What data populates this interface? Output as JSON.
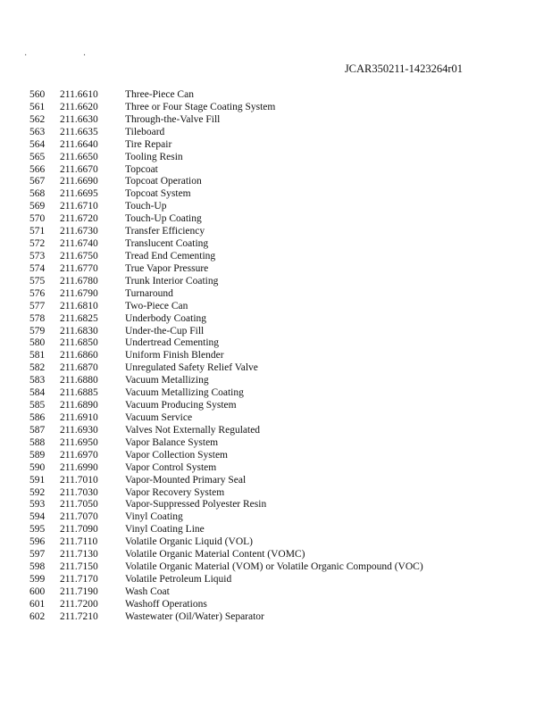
{
  "header": {
    "doc_id": "JCAR350211-1423264r01"
  },
  "rows": [
    {
      "num": "560",
      "section": "211.6610",
      "term": "Three-Piece Can"
    },
    {
      "num": "561",
      "section": "211.6620",
      "term": "Three or Four Stage Coating System"
    },
    {
      "num": "562",
      "section": "211.6630",
      "term": "Through-the-Valve Fill"
    },
    {
      "num": "563",
      "section": "211.6635",
      "term": "Tileboard"
    },
    {
      "num": "564",
      "section": "211.6640",
      "term": "Tire Repair"
    },
    {
      "num": "565",
      "section": "211.6650",
      "term": "Tooling Resin"
    },
    {
      "num": "566",
      "section": "211.6670",
      "term": "Topcoat"
    },
    {
      "num": "567",
      "section": "211.6690",
      "term": "Topcoat Operation"
    },
    {
      "num": "568",
      "section": "211.6695",
      "term": "Topcoat System"
    },
    {
      "num": "569",
      "section": "211.6710",
      "term": "Touch-Up"
    },
    {
      "num": "570",
      "section": "211.6720",
      "term": "Touch-Up Coating"
    },
    {
      "num": "571",
      "section": "211.6730",
      "term": "Transfer Efficiency"
    },
    {
      "num": "572",
      "section": "211.6740",
      "term": "Translucent Coating"
    },
    {
      "num": "573",
      "section": "211.6750",
      "term": "Tread End Cementing"
    },
    {
      "num": "574",
      "section": "211.6770",
      "term": "True Vapor Pressure"
    },
    {
      "num": "575",
      "section": "211.6780",
      "term": "Trunk Interior Coating"
    },
    {
      "num": "576",
      "section": "211.6790",
      "term": "Turnaround"
    },
    {
      "num": "577",
      "section": "211.6810",
      "term": "Two-Piece Can"
    },
    {
      "num": "578",
      "section": "211.6825",
      "term": "Underbody Coating"
    },
    {
      "num": "579",
      "section": "211.6830",
      "term": "Under-the-Cup Fill"
    },
    {
      "num": "580",
      "section": "211.6850",
      "term": "Undertread Cementing"
    },
    {
      "num": "581",
      "section": "211.6860",
      "term": "Uniform Finish Blender"
    },
    {
      "num": "582",
      "section": "211.6870",
      "term": "Unregulated Safety Relief Valve"
    },
    {
      "num": "583",
      "section": "211.6880",
      "term": "Vacuum Metallizing"
    },
    {
      "num": "584",
      "section": "211.6885",
      "term": "Vacuum Metallizing Coating"
    },
    {
      "num": "585",
      "section": "211.6890",
      "term": "Vacuum Producing System"
    },
    {
      "num": "586",
      "section": "211.6910",
      "term": "Vacuum Service"
    },
    {
      "num": "587",
      "section": "211.6930",
      "term": "Valves Not Externally Regulated"
    },
    {
      "num": "588",
      "section": "211.6950",
      "term": "Vapor Balance System"
    },
    {
      "num": "589",
      "section": "211.6970",
      "term": "Vapor Collection System"
    },
    {
      "num": "590",
      "section": "211.6990",
      "term": "Vapor Control System"
    },
    {
      "num": "591",
      "section": "211.7010",
      "term": "Vapor-Mounted Primary Seal"
    },
    {
      "num": "592",
      "section": "211.7030",
      "term": "Vapor Recovery System"
    },
    {
      "num": "593",
      "section": "211.7050",
      "term": "Vapor-Suppressed Polyester Resin"
    },
    {
      "num": "594",
      "section": "211.7070",
      "term": "Vinyl Coating"
    },
    {
      "num": "595",
      "section": "211.7090",
      "term": "Vinyl Coating Line"
    },
    {
      "num": "596",
      "section": "211.7110",
      "term": "Volatile Organic Liquid (VOL)"
    },
    {
      "num": "597",
      "section": "211.7130",
      "term": "Volatile Organic Material Content (VOMC)"
    },
    {
      "num": "598",
      "section": "211.7150",
      "term": "Volatile Organic Material (VOM) or Volatile Organic Compound (VOC)"
    },
    {
      "num": "599",
      "section": "211.7170",
      "term": "Volatile Petroleum Liquid"
    },
    {
      "num": "600",
      "section": "211.7190",
      "term": "Wash Coat"
    },
    {
      "num": "601",
      "section": "211.7200",
      "term": "Washoff Operations"
    },
    {
      "num": "602",
      "section": "211.7210",
      "term": "Wastewater (Oil/Water) Separator"
    }
  ]
}
